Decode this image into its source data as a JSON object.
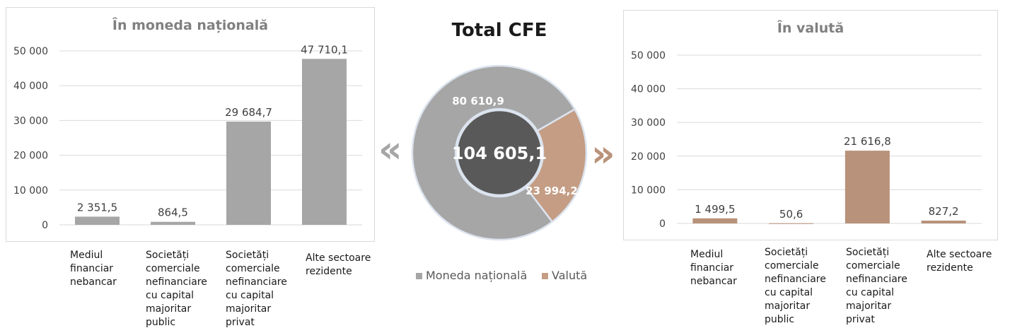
{
  "colors": {
    "gray_bar": "#a6a6a6",
    "brown_bar": "#b8927a",
    "donut_national": "#a6a6a6",
    "donut_valuta": "#c49d84",
    "donut_center": "#595959",
    "arrow_left": "#a6a6a6",
    "arrow_right": "#b8927a"
  },
  "donut": {
    "title": "Total CFE",
    "total": "104 605,1",
    "national_label": "80 610,9",
    "valuta_label": "23 994,2",
    "legend": [
      "Moneda națională",
      "Valută"
    ]
  },
  "arrows": {
    "left": "«",
    "right": "»"
  },
  "chart_data": [
    {
      "type": "bar",
      "title": "În moneda națională",
      "categories": [
        "Mediul financiar nebancar",
        "Societăți comerciale nefinanciare cu capital majoritar public",
        "Societăți comerciale nefinanciare cu capital majoritar privat",
        "Alte sectoare rezidente"
      ],
      "values": [
        2351.5,
        864.5,
        29684.7,
        47710.1
      ],
      "value_labels": [
        "2 351,5",
        "864,5",
        "29 684,7",
        "47 710,1"
      ],
      "ylim": [
        0,
        50000
      ],
      "yticks": [
        "0",
        "10 000",
        "20 000",
        "30 000",
        "40 000",
        "50 000"
      ],
      "grid": true
    },
    {
      "type": "bar",
      "title": "În valută",
      "categories": [
        "Mediul financiar nebancar",
        "Societăți comerciale nefinanciare cu capital majoritar public",
        "Societăți comerciale nefinanciare cu capital majoritar privat",
        "Alte sectoare rezidente"
      ],
      "values": [
        1499.5,
        50.6,
        21616.8,
        827.2
      ],
      "value_labels": [
        "1 499,5",
        "50,6",
        "21 616,8",
        "827,2"
      ],
      "ylim": [
        0,
        50000
      ],
      "yticks": [
        "0",
        "10 000",
        "20 000",
        "30 000",
        "40 000",
        "50 000"
      ],
      "grid": true
    },
    {
      "type": "pie",
      "title": "Total CFE",
      "categories": [
        "Moneda națională",
        "Valută"
      ],
      "values": [
        80610.9,
        23994.2
      ],
      "total": 104605.1
    }
  ]
}
